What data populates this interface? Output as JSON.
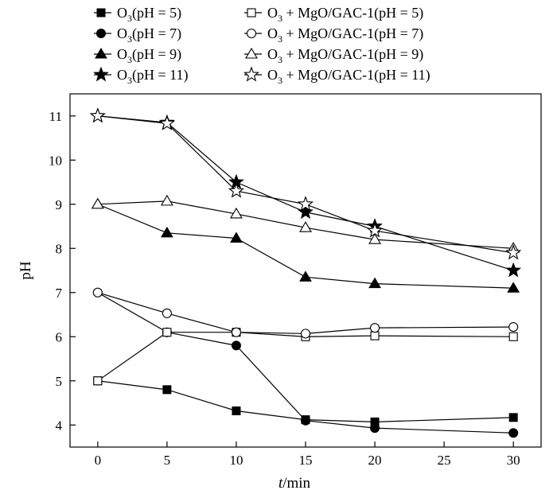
{
  "chart_data": {
    "type": "line",
    "xlabel_var": "t",
    "xlabel_unit": "/min",
    "ylabel": "pH",
    "xlim": [
      -2,
      32
    ],
    "ylim": [
      3.5,
      11.5
    ],
    "x_ticks": [
      0,
      5,
      10,
      15,
      20,
      25,
      30
    ],
    "y_ticks": [
      4,
      5,
      6,
      7,
      8,
      9,
      10,
      11
    ],
    "grid": false,
    "legend_position": "top",
    "series": [
      {
        "name_pre": "O",
        "name_sub": "3",
        "name_post": "(pH = 5)",
        "marker": "square",
        "fill": "filled",
        "x": [
          0,
          5,
          10,
          15,
          20,
          30
        ],
        "values": [
          5.0,
          4.8,
          4.32,
          4.12,
          4.07,
          4.17
        ]
      },
      {
        "name_pre": "O",
        "name_sub": "3",
        "name_post": "(pH = 7)",
        "marker": "circle",
        "fill": "filled",
        "x": [
          0,
          5,
          10,
          15,
          20,
          30
        ],
        "values": [
          7.0,
          6.1,
          5.8,
          4.1,
          3.93,
          3.82
        ]
      },
      {
        "name_pre": "O",
        "name_sub": "3",
        "name_post": "(pH = 9)",
        "marker": "triangle",
        "fill": "filled",
        "x": [
          0,
          5,
          10,
          15,
          20,
          30
        ],
        "values": [
          9.0,
          8.35,
          8.23,
          7.35,
          7.2,
          7.1
        ]
      },
      {
        "name_pre": "O",
        "name_sub": "3",
        "name_post": "(pH = 11)",
        "marker": "star",
        "fill": "filled",
        "x": [
          0,
          5,
          10,
          15,
          20,
          30
        ],
        "values": [
          11.0,
          10.85,
          9.5,
          8.82,
          8.5,
          7.5
        ]
      },
      {
        "name_pre": "O",
        "name_sub": "3",
        "name_post": " + MgO/GAC-1(pH = 5)",
        "marker": "square",
        "fill": "open",
        "x": [
          0,
          5,
          10,
          15,
          20,
          30
        ],
        "values": [
          5.0,
          6.1,
          6.1,
          6.0,
          6.02,
          6.0
        ]
      },
      {
        "name_pre": "O",
        "name_sub": "3",
        "name_post": " + MgO/GAC-1(pH = 7)",
        "marker": "circle",
        "fill": "open",
        "x": [
          0,
          5,
          10,
          15,
          20,
          30
        ],
        "values": [
          7.0,
          6.53,
          6.1,
          6.07,
          6.2,
          6.22
        ]
      },
      {
        "name_pre": "O",
        "name_sub": "3",
        "name_post": " + MgO/GAC-1(pH = 9)",
        "marker": "triangle",
        "fill": "open",
        "x": [
          0,
          5,
          10,
          15,
          20,
          30
        ],
        "values": [
          9.0,
          9.07,
          8.78,
          8.47,
          8.2,
          8.0
        ]
      },
      {
        "name_pre": "O",
        "name_sub": "3",
        "name_post": " + MgO/GAC-1(pH = 11)",
        "marker": "star",
        "fill": "open",
        "x": [
          0,
          5,
          10,
          15,
          20,
          30
        ],
        "values": [
          11.0,
          10.83,
          9.3,
          9.0,
          8.4,
          7.9
        ]
      }
    ]
  }
}
